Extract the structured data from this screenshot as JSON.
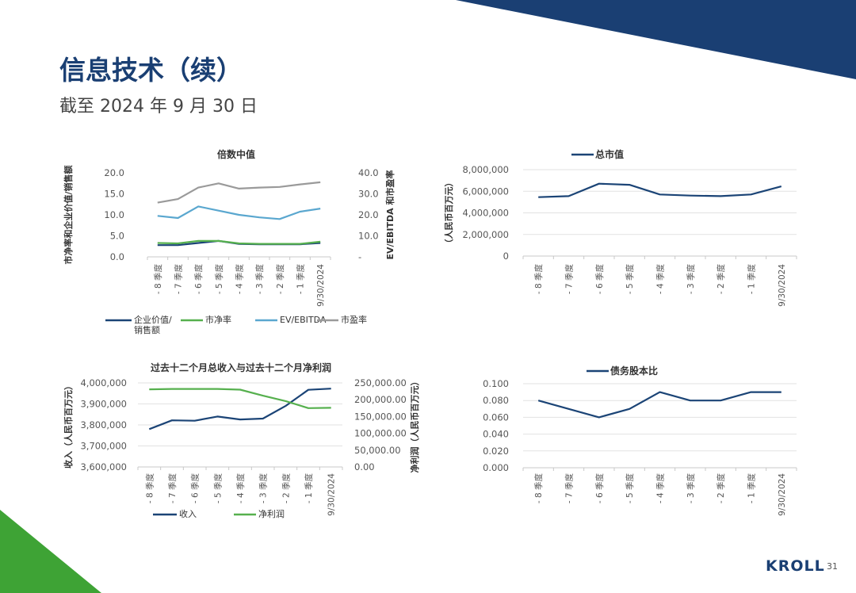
{
  "page": {
    "title": "信息技术（续）",
    "subtitle": "截至 2024 年 9 月 30 日",
    "logo": "KROLL",
    "page_number": "31",
    "colors": {
      "navy": "#1b4476",
      "green": "#56b04e",
      "lightblue": "#5aa7cf",
      "gray": "#9a9a9a",
      "brand_green": "#3ea335"
    }
  },
  "chart_data": [
    {
      "id": "chart1",
      "type": "line",
      "title": "倍数中值",
      "ylabel": "市净率和企业价值/销售额",
      "ylabel_right": "EV/EBITDA 和市盈率",
      "categories": [
        "- 8 季度",
        "- 7 季度",
        "- 6 季度",
        "- 5 季度",
        "- 4 季度",
        "- 3 季度",
        "- 2 季度",
        "- 1 季度",
        "9/30/2024"
      ],
      "ylim": [
        0,
        20
      ],
      "yticks": [
        "0.0",
        "5.0",
        "10.0",
        "15.0",
        "20.0"
      ],
      "ylim_right": [
        0,
        40
      ],
      "yticks_right": [
        "-",
        "10.0",
        "20.0",
        "30.0",
        "40.0"
      ],
      "legend": "bottom",
      "series": [
        {
          "name": "企业价值/\n销售额",
          "color": "#1b4476",
          "axis": "left",
          "values": [
            2.8,
            2.8,
            3.3,
            3.8,
            3.1,
            3.0,
            3.0,
            3.0,
            3.3
          ]
        },
        {
          "name": "市净率",
          "color": "#56b04e",
          "axis": "left",
          "values": [
            3.3,
            3.2,
            3.8,
            3.8,
            3.2,
            3.1,
            3.1,
            3.1,
            3.6
          ]
        },
        {
          "name": "EV/EBITDA",
          "color": "#5aa7cf",
          "axis": "right",
          "values": [
            19.5,
            18.5,
            24.0,
            22.0,
            20.0,
            18.8,
            18.0,
            21.5,
            23.0
          ]
        },
        {
          "name": "市盈率",
          "color": "#9a9a9a",
          "axis": "right",
          "values": [
            25.8,
            27.5,
            33.0,
            35.0,
            32.5,
            33.0,
            33.3,
            34.5,
            35.5
          ]
        }
      ]
    },
    {
      "id": "chart2",
      "type": "line",
      "title": "总市值",
      "ylabel": "（人民币百万元）",
      "categories": [
        "- 8 季度",
        "- 7 季度",
        "- 6 季度",
        "- 5 季度",
        "- 4 季度",
        "- 3 季度",
        "- 2 季度",
        "- 1 季度",
        "9/30/2024"
      ],
      "ylim": [
        0,
        8000000
      ],
      "yticks": [
        "0",
        "2,000,000",
        "4,000,000",
        "6,000,000",
        "8,000,000"
      ],
      "legend": "top",
      "series": [
        {
          "name": "总市值",
          "color": "#1b4476",
          "values": [
            5450000,
            5550000,
            6700000,
            6600000,
            5700000,
            5600000,
            5550000,
            5700000,
            6450000
          ]
        }
      ]
    },
    {
      "id": "chart3",
      "type": "line",
      "title": "过去十二个月总收入与过去十二个月净利润",
      "ylabel": "收入（人民币百万元）",
      "ylabel_right": "净利润（人民币百万元）",
      "categories": [
        "- 8 季度",
        "- 7 季度",
        "- 6 季度",
        "- 5 季度",
        "- 4 季度",
        "- 3 季度",
        "- 2 季度",
        "- 1 季度",
        "9/30/2024"
      ],
      "ylim": [
        3600000,
        4000000
      ],
      "yticks": [
        "3,600,000",
        "3,700,000",
        "3,800,000",
        "3,900,000",
        "4,000,000"
      ],
      "ylim_right": [
        0,
        250000
      ],
      "yticks_right": [
        "0.00",
        "50,000.00",
        "100,000.00",
        "150,000.00",
        "200,000.00",
        "250,000.00"
      ],
      "legend": "bottom",
      "series": [
        {
          "name": "收入",
          "color": "#1b4476",
          "axis": "left",
          "values": [
            3780000,
            3822000,
            3820000,
            3840000,
            3826000,
            3830000,
            3890000,
            3967000,
            3973000
          ]
        },
        {
          "name": "净利润",
          "color": "#56b04e",
          "axis": "right",
          "values": [
            231000,
            232000,
            232000,
            232000,
            230000,
            212000,
            196000,
            175000,
            176000
          ]
        }
      ]
    },
    {
      "id": "chart4",
      "type": "line",
      "title": "债务股本比",
      "categories": [
        "- 8 季度",
        "- 7 季度",
        "- 6 季度",
        "- 5 季度",
        "- 4 季度",
        "- 3 季度",
        "- 2 季度",
        "- 1 季度",
        "9/30/2024"
      ],
      "ylim": [
        0,
        0.1
      ],
      "yticks": [
        "0.000",
        "0.020",
        "0.040",
        "0.060",
        "0.080",
        "0.100"
      ],
      "legend": "top",
      "series": [
        {
          "name": "债务股本比",
          "color": "#1b4476",
          "values": [
            0.08,
            0.07,
            0.06,
            0.07,
            0.09,
            0.08,
            0.08,
            0.09,
            0.09
          ]
        }
      ]
    }
  ]
}
